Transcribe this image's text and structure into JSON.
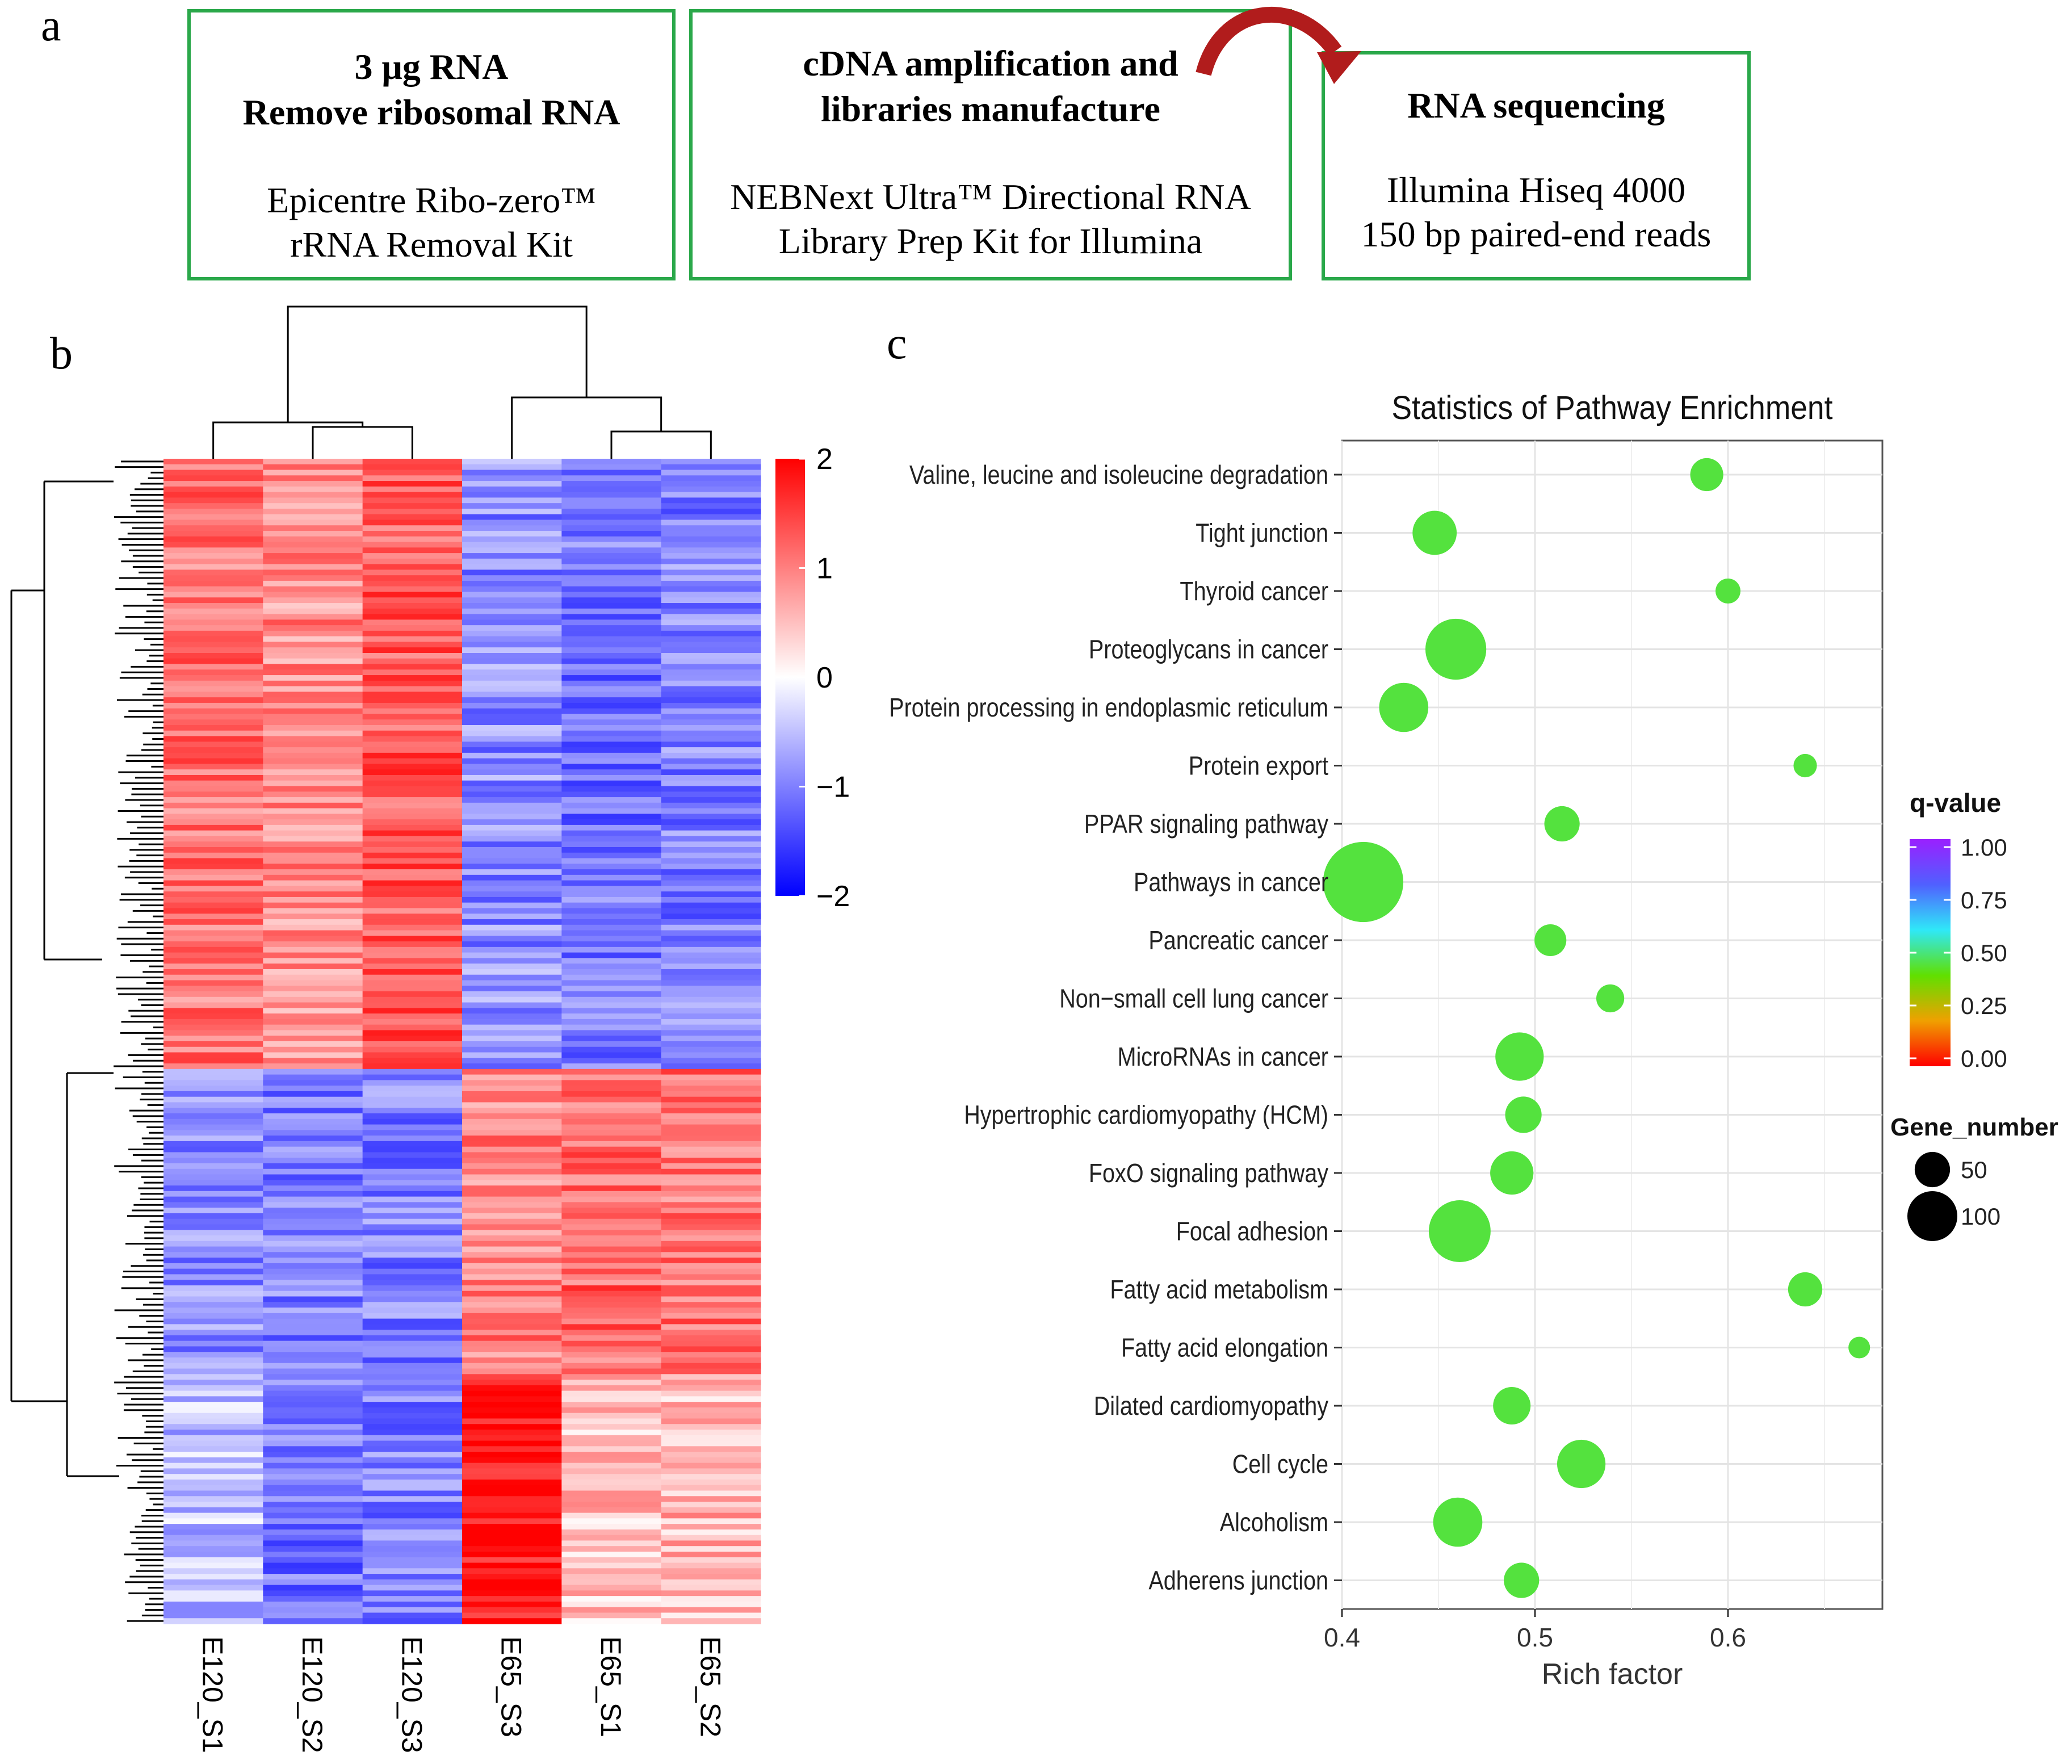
{
  "panel_labels": {
    "a": "a",
    "b": "b",
    "c": "c"
  },
  "workflow": {
    "steps": [
      {
        "title_lines": [
          "3 μg RNA",
          "Remove  ribosomal RNA"
        ],
        "body_lines": [
          "Epicentre Ribo-zero™",
          "rRNA Removal Kit"
        ]
      },
      {
        "title_lines": [
          "cDNA amplification and",
          "libraries manufacture"
        ],
        "body_lines": [
          "NEBNext Ultra™ Directional RNA",
          "Library Prep Kit for Illumina"
        ]
      },
      {
        "title_lines": [
          "RNA sequencing"
        ],
        "body_lines": [
          "Illumina Hiseq 4000",
          "150 bp paired-end reads"
        ]
      }
    ],
    "box_color": "#2aa84a",
    "arrow_color": "#b11c1c"
  },
  "chart_data": [
    {
      "type": "heatmap",
      "columns": [
        "E120_S1",
        "E120_S2",
        "E120_S3",
        "E65_S3",
        "E65_S1",
        "E65_S2"
      ],
      "row_clusters": [
        {
          "name": "upper",
          "row_count": 110,
          "column_means": [
            1.1,
            0.9,
            1.3,
            -0.9,
            -1.1,
            -1.0
          ]
        },
        {
          "name": "lower-a",
          "row_count": 55,
          "column_means": [
            -0.9,
            -1.0,
            -1.0,
            1.0,
            1.2,
            1.1
          ]
        },
        {
          "name": "lower-b",
          "row_count": 45,
          "column_means": [
            -0.5,
            -1.1,
            -1.0,
            1.9,
            0.5,
            0.6
          ]
        }
      ],
      "colorscale": {
        "min": -2,
        "max": 2,
        "low_color": "#0000ff",
        "mid_color": "#ffffff",
        "high_color": "#ff0000"
      },
      "colorbar_ticks": [
        "2",
        "1",
        "0",
        "−1",
        "−2"
      ]
    },
    {
      "type": "scatter",
      "title": "Statistics of Pathway Enrichment",
      "xlabel": "Rich factor",
      "xlim": [
        0.4,
        0.68
      ],
      "xticks": [
        "0.4",
        "0.5",
        "0.6"
      ],
      "categories": [
        "Valine, leucine and isoleucine degradation",
        "Tight junction",
        "Thyroid cancer",
        "Proteoglycans in cancer",
        "Protein processing in endoplasmic reticulum",
        "Protein export",
        "PPAR signaling pathway",
        "Pathways in cancer",
        "Pancreatic cancer",
        "Non−small cell lung cancer",
        "MicroRNAs in cancer",
        "Hypertrophic cardiomyopathy (HCM)",
        "FoxO signaling pathway",
        "Focal adhesion",
        "Fatty acid metabolism",
        "Fatty acid elongation",
        "Dilated cardiomyopathy",
        "Cell cycle",
        "Alcoholism",
        "Adherens junction"
      ],
      "rich_factor": [
        0.589,
        0.448,
        0.6,
        0.459,
        0.432,
        0.64,
        0.514,
        0.411,
        0.508,
        0.539,
        0.492,
        0.494,
        0.488,
        0.461,
        0.64,
        0.668,
        0.488,
        0.524,
        0.46,
        0.493
      ],
      "gene_number": [
        28,
        50,
        16,
        95,
        62,
        14,
        32,
        165,
        26,
        20,
        60,
        34,
        48,
        98,
        30,
        12,
        36,
        60,
        62,
        32
      ],
      "q_value": [
        0.45,
        0.45,
        0.45,
        0.45,
        0.45,
        0.45,
        0.45,
        0.45,
        0.45,
        0.45,
        0.45,
        0.45,
        0.45,
        0.45,
        0.45,
        0.45,
        0.45,
        0.45,
        0.45,
        0.45
      ],
      "legend_qvalue": {
        "title": "q-value",
        "ticks": [
          "1.00",
          "0.75",
          "0.50",
          "0.25",
          "0.00"
        ],
        "colors": [
          "#ff0000",
          "#f0a000",
          "#60e000",
          "#2fe8f8",
          "#5060ff",
          "#9a20ff"
        ]
      },
      "legend_gene_number": {
        "title": "Gene_number",
        "sizes": [
          50,
          100
        ],
        "labels": [
          "50",
          "100"
        ]
      }
    }
  ]
}
